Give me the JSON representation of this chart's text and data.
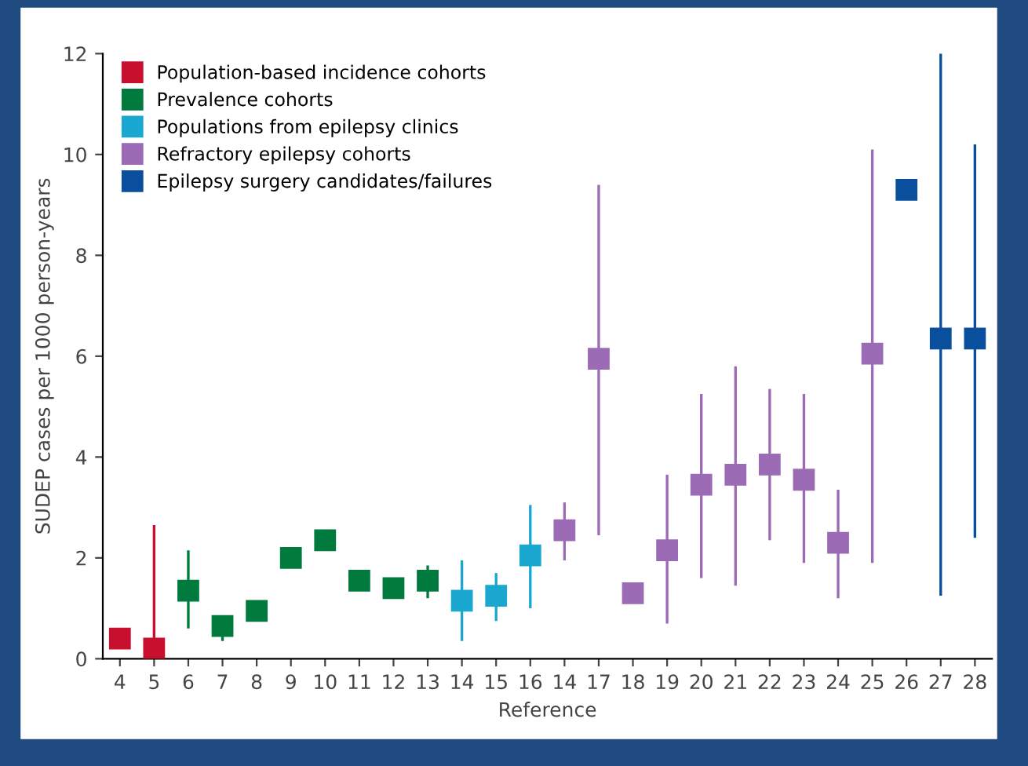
{
  "chart_data": {
    "type": "scatter",
    "xlabel": "Reference",
    "ylabel": "SUDEP cases per 1000 person-years",
    "categories": [
      "4",
      "5",
      "6",
      "7",
      "8",
      "9",
      "10",
      "11",
      "12",
      "13",
      "14",
      "15",
      "16",
      "14",
      "17",
      "18",
      "19",
      "20",
      "21",
      "22",
      "23",
      "24",
      "25",
      "26",
      "27",
      "28"
    ],
    "series": [
      {
        "name": "Population-based incidence cohorts",
        "color": "#c8102e",
        "values": [
          0.4,
          0.2,
          null,
          null,
          null,
          null,
          null,
          null,
          null,
          null,
          null,
          null,
          null,
          null,
          null,
          null,
          null,
          null,
          null,
          null,
          null,
          null,
          null,
          null,
          null,
          null
        ],
        "errors": [
          [
            0.4,
            0.6
          ],
          [
            0,
            2.65
          ],
          null,
          null,
          null,
          null,
          null,
          null,
          null,
          null,
          null,
          null,
          null,
          null,
          null,
          null,
          null,
          null,
          null,
          null,
          null,
          null,
          null,
          null,
          null,
          null
        ]
      },
      {
        "name": "Prevalence cohorts",
        "color": "#007a3d",
        "values": [
          null,
          null,
          1.35,
          0.65,
          0.95,
          2.0,
          2.35,
          1.55,
          1.4,
          1.55,
          null,
          null,
          null,
          null,
          null,
          null,
          null,
          null,
          null,
          null,
          null,
          null,
          null,
          null,
          null,
          null
        ],
        "errors": [
          null,
          null,
          [
            0.6,
            2.15
          ],
          [
            0.35,
            0.8
          ],
          null,
          null,
          null,
          null,
          null,
          [
            1.2,
            1.85
          ],
          null,
          null,
          null,
          null,
          null,
          null,
          null,
          null,
          null,
          null,
          null,
          null,
          null,
          null,
          null,
          null
        ]
      },
      {
        "name": "Populations from epilepsy clinics",
        "color": "#1aa7d0",
        "values": [
          null,
          null,
          null,
          null,
          null,
          null,
          null,
          null,
          null,
          null,
          1.15,
          1.25,
          2.05,
          null,
          null,
          null,
          null,
          null,
          null,
          null,
          null,
          null,
          null,
          null,
          null,
          null
        ],
        "errors": [
          null,
          null,
          null,
          null,
          null,
          null,
          null,
          null,
          null,
          null,
          [
            0.35,
            1.95
          ],
          [
            0.75,
            1.7
          ],
          [
            1.0,
            3.05
          ],
          null,
          null,
          null,
          null,
          null,
          null,
          null,
          null,
          null,
          null,
          null,
          null,
          null
        ]
      },
      {
        "name": "Refractory epilepsy cohorts",
        "color": "#9b6bb5",
        "values": [
          null,
          null,
          null,
          null,
          null,
          null,
          null,
          null,
          null,
          null,
          null,
          null,
          null,
          2.55,
          5.95,
          1.3,
          2.15,
          3.45,
          3.65,
          3.85,
          3.55,
          2.3,
          6.05,
          null,
          null,
          null
        ],
        "errors": [
          null,
          null,
          null,
          null,
          null,
          null,
          null,
          null,
          null,
          null,
          null,
          null,
          null,
          [
            1.95,
            3.1
          ],
          [
            2.45,
            9.4
          ],
          null,
          [
            0.7,
            3.65
          ],
          [
            1.6,
            5.25
          ],
          [
            1.45,
            5.8
          ],
          [
            2.35,
            5.35
          ],
          [
            1.9,
            5.25
          ],
          [
            1.2,
            3.35
          ],
          [
            1.9,
            10.1
          ],
          null,
          null,
          null
        ]
      },
      {
        "name": "Epilepsy surgery candidates/failures",
        "color": "#0a4f9e",
        "values": [
          null,
          null,
          null,
          null,
          null,
          null,
          null,
          null,
          null,
          null,
          null,
          null,
          null,
          null,
          null,
          null,
          null,
          null,
          null,
          null,
          null,
          null,
          null,
          9.3,
          6.35,
          6.35
        ],
        "errors": [
          null,
          null,
          null,
          null,
          null,
          null,
          null,
          null,
          null,
          null,
          null,
          null,
          null,
          null,
          null,
          null,
          null,
          null,
          null,
          null,
          null,
          null,
          null,
          null,
          [
            1.25,
            12
          ],
          [
            2.4,
            10.2
          ]
        ]
      }
    ],
    "ylim": [
      0,
      12
    ],
    "yticks": [
      0,
      2,
      4,
      6,
      8,
      10,
      12
    ],
    "marker": "square",
    "grid": false,
    "legend": "top left"
  }
}
